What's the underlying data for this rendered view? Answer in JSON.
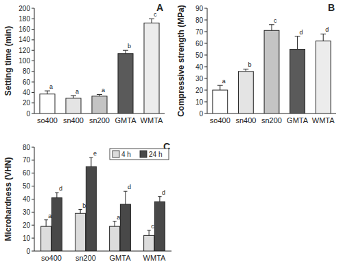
{
  "chart_data": [
    {
      "type": "bar",
      "title": "A",
      "y_label": "Setting time (min)",
      "categories": [
        "so400",
        "sn400",
        "sn200",
        "GMTA",
        "WMTA"
      ],
      "values": [
        37,
        29,
        33,
        114,
        172
      ],
      "error": [
        6,
        5,
        3,
        6,
        8
      ],
      "letters": [
        "a",
        "a",
        "a",
        "b",
        "c"
      ],
      "colors": [
        "#ffffff",
        "#e4e4e4",
        "#c4c4c4",
        "#5a5a5a",
        "#ececec"
      ],
      "ylim": [
        0,
        200
      ],
      "yticks": [
        0,
        20,
        40,
        60,
        80,
        100,
        120,
        140,
        160,
        180,
        200
      ]
    },
    {
      "type": "bar",
      "title": "B",
      "y_label": "Compressive strength (MPa)",
      "categories": [
        "so400",
        "sn400",
        "sn200",
        "GMTA",
        "WMTA"
      ],
      "values": [
        20,
        36,
        71,
        55,
        62
      ],
      "error": [
        4,
        2,
        5,
        11,
        6
      ],
      "letters": [
        "a",
        "b",
        "c",
        "d",
        "d"
      ],
      "colors": [
        "#ffffff",
        "#e4e4e4",
        "#c4c4c4",
        "#5a5a5a",
        "#ececec"
      ],
      "ylim": [
        0,
        90
      ],
      "yticks": [
        0,
        10,
        20,
        30,
        40,
        50,
        60,
        70,
        80,
        90
      ]
    },
    {
      "type": "bar",
      "title": "C",
      "y_label": "Microhardness (VHN)",
      "categories": [
        "so400",
        "sn200",
        "GMTA",
        "WMTA"
      ],
      "series": [
        {
          "name": "4 h",
          "color": "#dcdcdc",
          "values": [
            19,
            29,
            19,
            12
          ],
          "error": [
            5,
            3,
            4,
            4
          ],
          "letters": [
            "a",
            "b",
            "a",
            "c"
          ]
        },
        {
          "name": "24 h",
          "color": "#484848",
          "values": [
            41,
            65,
            36,
            38
          ],
          "error": [
            4,
            7,
            10,
            4
          ],
          "letters": [
            "d",
            "e",
            "d",
            "d"
          ]
        }
      ],
      "legend": "upper right",
      "ylim": [
        0,
        80
      ],
      "yticks": [
        0,
        10,
        20,
        30,
        40,
        50,
        60,
        70,
        80
      ]
    }
  ]
}
